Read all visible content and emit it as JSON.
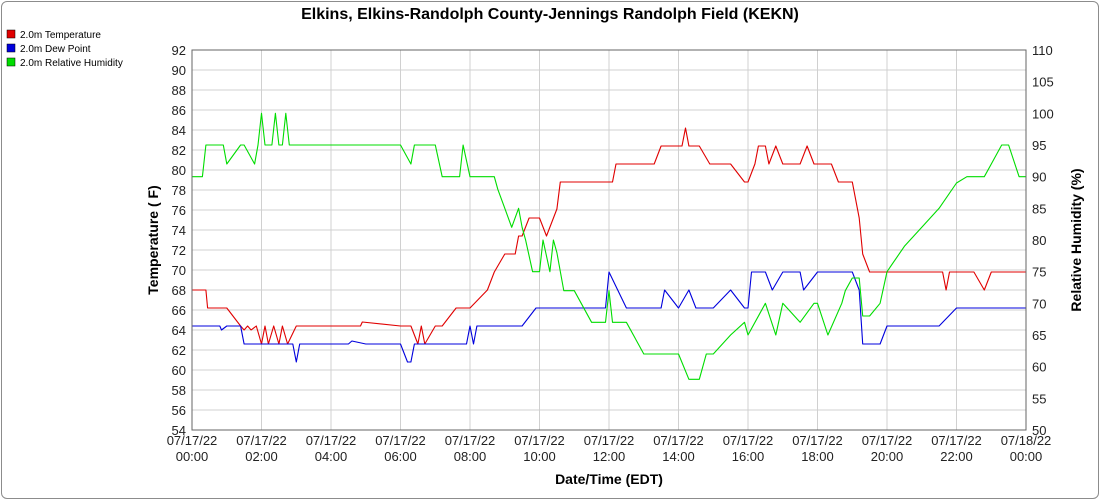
{
  "chart_data": {
    "type": "line",
    "title": "Elkins, Elkins-Randolph County-Jennings Randolph Field (KEKN)",
    "xlabel": "Date/Time (EDT)",
    "ylabel": "Temperature ( F)",
    "y2label": "Relative Humidity (%)",
    "ylim": [
      54,
      92
    ],
    "y2lim": [
      50,
      110
    ],
    "xlim_hours": [
      0,
      24
    ],
    "grid": true,
    "legend_position": "top-left",
    "left_ticks": [
      "92",
      "90",
      "88",
      "86",
      "84",
      "82",
      "80",
      "78",
      "76",
      "74",
      "72",
      "70",
      "68",
      "66",
      "64",
      "62",
      "60",
      "58",
      "56",
      "54"
    ],
    "right_ticks": [
      "110",
      "105",
      "100",
      "95",
      "90",
      "85",
      "80",
      "75",
      "70",
      "65",
      "60",
      "55",
      "50"
    ],
    "x_ticks": [
      {
        "date": "07/17/22",
        "time": "00:00"
      },
      {
        "date": "07/17/22",
        "time": "02:00"
      },
      {
        "date": "07/17/22",
        "time": "04:00"
      },
      {
        "date": "07/17/22",
        "time": "06:00"
      },
      {
        "date": "07/17/22",
        "time": "08:00"
      },
      {
        "date": "07/17/22",
        "time": "10:00"
      },
      {
        "date": "07/17/22",
        "time": "12:00"
      },
      {
        "date": "07/17/22",
        "time": "14:00"
      },
      {
        "date": "07/17/22",
        "time": "16:00"
      },
      {
        "date": "07/17/22",
        "time": "18:00"
      },
      {
        "date": "07/17/22",
        "time": "20:00"
      },
      {
        "date": "07/17/22",
        "time": "22:00"
      },
      {
        "date": "07/18/22",
        "time": "00:00"
      }
    ],
    "series": [
      {
        "name": "2.0m Temperature",
        "color": "#e00000",
        "axis": "left",
        "x": [
          0,
          0.4,
          0.45,
          1.0,
          1.4,
          1.5,
          1.6,
          1.7,
          1.85,
          2.0,
          2.1,
          2.2,
          2.35,
          2.5,
          2.6,
          2.75,
          3.0,
          4.0,
          4.85,
          4.9,
          6.0,
          6.3,
          6.5,
          6.6,
          6.7,
          7.0,
          7.2,
          7.6,
          8.0,
          8.5,
          8.7,
          9.0,
          9.1,
          9.3,
          9.4,
          9.5,
          9.7,
          10.0,
          10.2,
          10.5,
          10.6,
          11.0,
          11.5,
          12.0,
          12.1,
          12.2,
          12.5,
          13.0,
          13.3,
          13.5,
          13.6,
          14.0,
          14.1,
          14.2,
          14.3,
          14.5,
          14.6,
          14.9,
          15.0,
          15.1,
          15.2,
          15.5,
          15.9,
          16.0,
          16.2,
          16.3,
          16.5,
          16.6,
          16.8,
          17.0,
          17.2,
          17.5,
          17.7,
          17.9,
          18.0,
          18.4,
          18.6,
          18.9,
          19.0,
          19.2,
          19.3,
          19.5,
          19.8,
          20.0,
          20.5,
          21.0,
          21.6,
          21.7,
          21.8,
          22.0,
          22.5,
          22.8,
          23.0,
          23.3,
          23.5,
          23.8,
          24.0
        ],
        "y": [
          68.0,
          68.0,
          66.2,
          66.2,
          64.4,
          64.0,
          64.4,
          64.0,
          64.4,
          62.6,
          64.4,
          62.6,
          64.4,
          62.6,
          64.4,
          62.6,
          64.4,
          64.4,
          64.4,
          64.8,
          64.4,
          64.4,
          62.6,
          64.4,
          62.6,
          64.4,
          64.4,
          66.2,
          66.2,
          68.0,
          69.8,
          71.6,
          71.6,
          71.6,
          73.4,
          73.4,
          75.2,
          75.2,
          73.4,
          76.1,
          78.8,
          78.8,
          78.8,
          78.8,
          78.8,
          80.6,
          80.6,
          80.6,
          80.6,
          82.4,
          82.4,
          82.4,
          82.4,
          84.2,
          82.4,
          82.4,
          82.4,
          80.6,
          80.6,
          80.6,
          80.6,
          80.6,
          78.8,
          78.8,
          80.6,
          82.4,
          82.4,
          80.6,
          82.4,
          80.6,
          80.6,
          80.6,
          82.4,
          80.6,
          80.6,
          80.6,
          78.8,
          78.8,
          78.8,
          75.2,
          71.6,
          69.8,
          69.8,
          69.8,
          69.8,
          69.8,
          69.8,
          68.0,
          69.8,
          69.8,
          69.8,
          68.0,
          69.8,
          69.8,
          69.8,
          69.8,
          69.8
        ]
      },
      {
        "name": "2.0m Dew Point",
        "color": "#0000dd",
        "axis": "left",
        "x": [
          0,
          0.8,
          0.85,
          1.0,
          1.4,
          1.5,
          1.7,
          1.9,
          2.0,
          2.5,
          2.9,
          3.0,
          3.1,
          3.2,
          4.0,
          4.5,
          4.6,
          5.0,
          5.9,
          6.0,
          6.2,
          6.3,
          6.4,
          6.6,
          6.8,
          7.0,
          7.5,
          7.9,
          8.0,
          8.1,
          8.2,
          8.5,
          9.0,
          9.5,
          9.9,
          10.0,
          10.5,
          11.0,
          11.5,
          11.9,
          12.0,
          12.5,
          12.8,
          13.0,
          13.5,
          13.6,
          14.0,
          14.3,
          14.5,
          15.0,
          15.5,
          15.9,
          16.0,
          16.1,
          16.5,
          16.7,
          17.0,
          17.5,
          17.6,
          18.0,
          18.3,
          18.5,
          18.8,
          19.0,
          19.2,
          19.3,
          19.6,
          19.8,
          20.0,
          20.5,
          21.0,
          21.5,
          22.0,
          22.3,
          22.5,
          22.8,
          23.0,
          23.5,
          24.0
        ],
        "y": [
          64.4,
          64.4,
          64.0,
          64.4,
          64.4,
          62.6,
          62.6,
          62.6,
          62.6,
          62.6,
          62.6,
          60.8,
          62.6,
          62.6,
          62.6,
          62.6,
          62.9,
          62.6,
          62.6,
          62.6,
          60.8,
          60.8,
          62.6,
          62.6,
          62.6,
          62.6,
          62.6,
          62.6,
          64.4,
          62.6,
          64.4,
          64.4,
          64.4,
          64.4,
          66.2,
          66.2,
          66.2,
          66.2,
          66.2,
          66.2,
          69.8,
          66.2,
          66.2,
          66.2,
          66.2,
          68.0,
          66.2,
          68.0,
          66.2,
          66.2,
          68.0,
          66.2,
          66.2,
          69.8,
          69.8,
          68.0,
          69.8,
          69.8,
          68.0,
          69.8,
          69.8,
          69.8,
          69.8,
          69.8,
          68.0,
          62.6,
          62.6,
          62.6,
          64.4,
          64.4,
          64.4,
          64.4,
          66.2,
          66.2,
          66.2,
          66.2,
          66.2,
          66.2,
          66.2
        ]
      },
      {
        "name": "2.0m Relative Humidity",
        "color": "#00dd00",
        "axis": "right",
        "x": [
          0,
          0.3,
          0.4,
          0.9,
          1.0,
          1.4,
          1.5,
          1.8,
          1.9,
          2.0,
          2.1,
          2.3,
          2.4,
          2.5,
          2.6,
          2.7,
          2.8,
          2.9,
          3.0,
          4.0,
          5.0,
          5.9,
          6.0,
          6.3,
          6.4,
          6.5,
          7.0,
          7.2,
          7.5,
          7.7,
          7.8,
          8.0,
          8.2,
          8.7,
          8.8,
          9.0,
          9.2,
          9.4,
          9.5,
          9.6,
          9.8,
          10.0,
          10.1,
          10.3,
          10.4,
          10.5,
          10.7,
          11.0,
          11.5,
          11.9,
          12.0,
          12.1,
          12.5,
          13.0,
          13.5,
          13.7,
          13.9,
          14.0,
          14.3,
          14.6,
          14.8,
          15.0,
          15.5,
          15.9,
          16.0,
          16.5,
          16.8,
          17.0,
          17.5,
          17.9,
          18.0,
          18.3,
          18.7,
          18.8,
          19.0,
          19.2,
          19.3,
          19.5,
          19.8,
          20.0,
          20.5,
          21.0,
          21.5,
          22.0,
          22.3,
          22.5,
          22.8,
          23.0,
          23.3,
          23.5,
          23.8,
          24.0
        ],
        "y": [
          90,
          90,
          95,
          95,
          92,
          95,
          95,
          92,
          95,
          100,
          95,
          95,
          100,
          95,
          95,
          100,
          95,
          95,
          95,
          95,
          95,
          95,
          95,
          92,
          95,
          95,
          95,
          90,
          90,
          90,
          95,
          90,
          90,
          90,
          88,
          85,
          82,
          85,
          82,
          80,
          75,
          75,
          80,
          75,
          80,
          78,
          72,
          72,
          67,
          67,
          72,
          67,
          67,
          62,
          62,
          62,
          62,
          62,
          58,
          58,
          62,
          62,
          65,
          67,
          65,
          70,
          65,
          70,
          67,
          70,
          70,
          65,
          70,
          72,
          74,
          74,
          68,
          68,
          70,
          75,
          79,
          82,
          85,
          89,
          90,
          90,
          90,
          92,
          95,
          95,
          90,
          90
        ]
      }
    ]
  }
}
